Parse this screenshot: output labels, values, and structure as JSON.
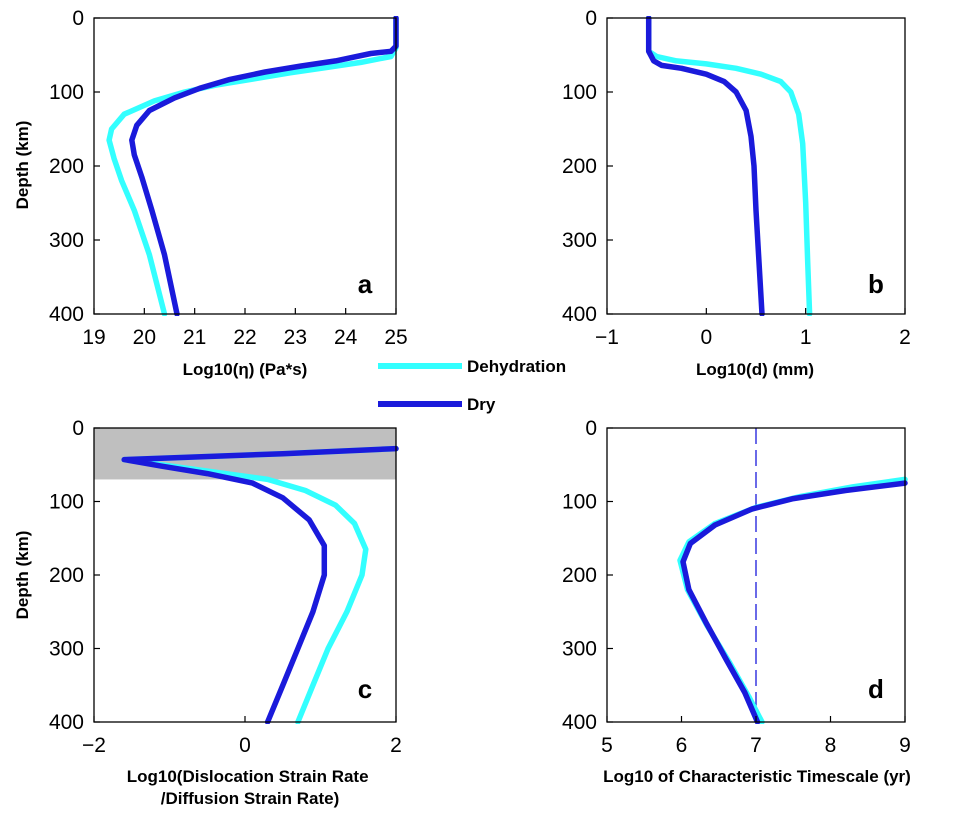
{
  "legend": {
    "entries": [
      {
        "label": "Dehydration",
        "color": "#33ffff"
      },
      {
        "label": "Dry",
        "color": "#1a1adb"
      }
    ]
  },
  "chart_data": [
    {
      "type": "line",
      "panel_letter": "a",
      "xlabel": "Log10(η) (Pa*s)",
      "ylabel": "Depth (km)",
      "xlim": [
        19,
        25
      ],
      "ylim": [
        400,
        0
      ],
      "y_inverted": true,
      "xticks": [
        "19",
        "20",
        "21",
        "22",
        "23",
        "24",
        "25"
      ],
      "yticks": [
        "0",
        "100",
        "200",
        "300",
        "400"
      ],
      "series": [
        {
          "name": "Dehydration",
          "color": "#33ffff",
          "dash_segments": [
            [
              0,
              50
            ],
            [
              90,
              400
            ]
          ],
          "points": [
            [
              25,
              0
            ],
            [
              25,
              10
            ],
            [
              25,
              20
            ],
            [
              25,
              30
            ],
            [
              25,
              40
            ],
            [
              24.9,
              52
            ],
            [
              24.3,
              60
            ],
            [
              23.6,
              67
            ],
            [
              22.9,
              74
            ],
            [
              22.2,
              82
            ],
            [
              21.4,
              91
            ],
            [
              20.8,
              100
            ],
            [
              20.2,
              112
            ],
            [
              19.6,
              130
            ],
            [
              19.35,
              150
            ],
            [
              19.3,
              165
            ],
            [
              19.4,
              190
            ],
            [
              19.55,
              220
            ],
            [
              19.8,
              260
            ],
            [
              20.1,
              320
            ],
            [
              20.4,
              400
            ]
          ]
        },
        {
          "name": "Dry",
          "color": "#1a1adb",
          "dash_segments": [
            [
              0,
              45
            ],
            [
              95,
              400
            ]
          ],
          "points": [
            [
              25,
              0
            ],
            [
              25,
              10
            ],
            [
              25,
              20
            ],
            [
              25,
              30
            ],
            [
              25,
              38
            ],
            [
              24.9,
              45
            ],
            [
              24.5,
              48
            ],
            [
              23.8,
              58
            ],
            [
              23.1,
              65
            ],
            [
              22.4,
              73
            ],
            [
              21.7,
              83
            ],
            [
              21.1,
              95
            ],
            [
              20.6,
              108
            ],
            [
              20.1,
              125
            ],
            [
              19.85,
              145
            ],
            [
              19.75,
              165
            ],
            [
              19.8,
              185
            ],
            [
              19.95,
              215
            ],
            [
              20.15,
              260
            ],
            [
              20.4,
              320
            ],
            [
              20.65,
              400
            ]
          ]
        }
      ]
    },
    {
      "type": "line",
      "panel_letter": "b",
      "xlabel": "Log10(d) (mm)",
      "ylabel": "",
      "xlim": [
        -1,
        2
      ],
      "ylim": [
        400,
        0
      ],
      "y_inverted": true,
      "xticks": [
        "−1",
        "0",
        "1",
        "2"
      ],
      "yticks": [
        "0",
        "100",
        "200",
        "300",
        "400"
      ],
      "series": [
        {
          "name": "Dehydration",
          "color": "#33ffff",
          "dash_segments": [
            [
              0,
              85
            ],
            [
              100,
              400
            ]
          ],
          "points": [
            [
              -0.58,
              0
            ],
            [
              -0.58,
              20
            ],
            [
              -0.58,
              45
            ],
            [
              -0.5,
              52
            ],
            [
              -0.3,
              58
            ],
            [
              0,
              62
            ],
            [
              0.3,
              68
            ],
            [
              0.55,
              76
            ],
            [
              0.75,
              86
            ],
            [
              0.85,
              100
            ],
            [
              0.93,
              130
            ],
            [
              0.97,
              170
            ],
            [
              1,
              250
            ],
            [
              1.02,
              330
            ],
            [
              1.04,
              400
            ]
          ]
        },
        {
          "name": "Dry",
          "color": "#1a1adb",
          "dash_segments": [
            [
              0,
              100
            ],
            [
              115,
              400
            ]
          ],
          "points": [
            [
              -0.58,
              0
            ],
            [
              -0.58,
              20
            ],
            [
              -0.58,
              45
            ],
            [
              -0.53,
              58
            ],
            [
              -0.45,
              64
            ],
            [
              -0.25,
              68
            ],
            [
              0,
              76
            ],
            [
              0.18,
              86
            ],
            [
              0.3,
              100
            ],
            [
              0.4,
              125
            ],
            [
              0.45,
              160
            ],
            [
              0.48,
              200
            ],
            [
              0.5,
              260
            ],
            [
              0.53,
              330
            ],
            [
              0.56,
              400
            ]
          ]
        }
      ]
    },
    {
      "type": "line",
      "panel_letter": "c",
      "xlabel": "Log10(Dislocation Strain Rate /Diffusion Strain Rate)",
      "ylabel": "Depth (km)",
      "xlim": [
        -2,
        2
      ],
      "ylim": [
        400,
        0
      ],
      "y_inverted": true,
      "xticks": [
        "−2",
        "0",
        "2"
      ],
      "yticks": [
        "0",
        "100",
        "200",
        "300",
        "400"
      ],
      "shaded_band": {
        "y_from": 0,
        "y_to": 70,
        "color": "#bfbfbf"
      },
      "series": [
        {
          "name": "Dehydration",
          "color": "#33ffff",
          "points": [
            [
              2,
              28
            ],
            [
              0.5,
              35
            ],
            [
              -0.8,
              40
            ],
            [
              -1.6,
              43
            ],
            [
              -1.1,
              50
            ],
            [
              -0.4,
              60
            ],
            [
              0.3,
              70
            ],
            [
              0.8,
              85
            ],
            [
              1.2,
              105
            ],
            [
              1.45,
              130
            ],
            [
              1.6,
              165
            ],
            [
              1.55,
              200
            ],
            [
              1.35,
              250
            ],
            [
              1.1,
              300
            ],
            [
              0.9,
              350
            ],
            [
              0.7,
              400
            ]
          ]
        },
        {
          "name": "Dry",
          "color": "#1a1adb",
          "points": [
            [
              2,
              28
            ],
            [
              0.5,
              35
            ],
            [
              -0.8,
              40
            ],
            [
              -1.6,
              43
            ],
            [
              -1.1,
              52
            ],
            [
              -0.5,
              62
            ],
            [
              0.1,
              75
            ],
            [
              0.5,
              95
            ],
            [
              0.85,
              125
            ],
            [
              1.05,
              160
            ],
            [
              1.05,
              200
            ],
            [
              0.9,
              250
            ],
            [
              0.7,
              300
            ],
            [
              0.5,
              350
            ],
            [
              0.3,
              400
            ]
          ]
        }
      ]
    },
    {
      "type": "line",
      "panel_letter": "d",
      "xlabel": "Log10 of Characteristic Timescale (yr)",
      "ylabel": "",
      "xlim": [
        5,
        9
      ],
      "ylim": [
        400,
        0
      ],
      "y_inverted": true,
      "xticks": [
        "5",
        "6",
        "7",
        "8",
        "9"
      ],
      "yticks": [
        "0",
        "100",
        "200",
        "300",
        "400"
      ],
      "reference_line": {
        "x": 7,
        "style": "dashed",
        "color": "#1a1adb"
      },
      "series": [
        {
          "name": "Dehydration",
          "color": "#33ffff",
          "points": [
            [
              9,
              70
            ],
            [
              8.3,
              80
            ],
            [
              7.6,
              93
            ],
            [
              7,
              108
            ],
            [
              6.45,
              130
            ],
            [
              6.1,
              155
            ],
            [
              5.98,
              180
            ],
            [
              6.08,
              220
            ],
            [
              6.35,
              270
            ],
            [
              6.65,
              320
            ],
            [
              6.9,
              365
            ],
            [
              7.08,
              400
            ]
          ]
        },
        {
          "name": "Dry",
          "color": "#1a1adb",
          "points": [
            [
              9,
              75
            ],
            [
              8.2,
              85
            ],
            [
              7.5,
              96
            ],
            [
              6.95,
              110
            ],
            [
              6.45,
              132
            ],
            [
              6.12,
              157
            ],
            [
              6.02,
              182
            ],
            [
              6.1,
              220
            ],
            [
              6.33,
              265
            ],
            [
              6.6,
              315
            ],
            [
              6.85,
              360
            ],
            [
              7.02,
              400
            ]
          ]
        }
      ]
    }
  ]
}
